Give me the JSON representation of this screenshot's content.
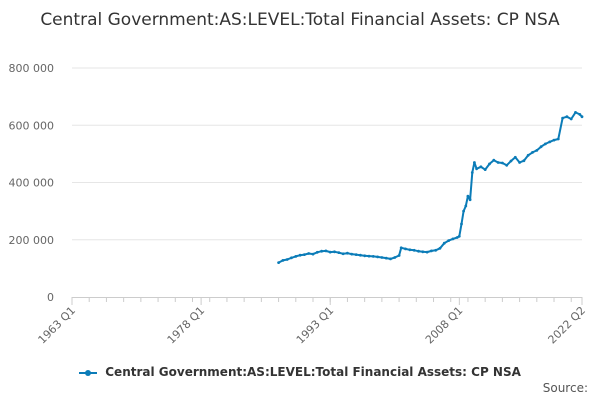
{
  "chart_data": {
    "type": "line",
    "title": "Central Government:AS:LEVEL:Total Financial Assets: CP NSA",
    "x_range": [
      "1963 Q1",
      "2022 Q2"
    ],
    "x_ticks": [
      "1963 Q1",
      "1978 Q1",
      "1993 Q1",
      "2008 Q1",
      "2022 Q2"
    ],
    "y_ticks": [
      "0",
      "200 000",
      "400 000",
      "600 000",
      "800 000"
    ],
    "ylim": [
      0,
      800000
    ],
    "grid": true,
    "legend_position": "bottom",
    "series": [
      {
        "name": "Central Government:AS:LEVEL:Total Financial Assets: CP NSA",
        "color": "#0b7cb8",
        "points": [
          [
            "1987 Q1",
            120000
          ],
          [
            "1987 Q3",
            128000
          ],
          [
            "1988 Q1",
            131000
          ],
          [
            "1988 Q3",
            137000
          ],
          [
            "1989 Q1",
            142000
          ],
          [
            "1989 Q3",
            146000
          ],
          [
            "1990 Q1",
            148000
          ],
          [
            "1990 Q3",
            152000
          ],
          [
            "1991 Q1",
            150000
          ],
          [
            "1991 Q3",
            156000
          ],
          [
            "1992 Q1",
            160000
          ],
          [
            "1992 Q3",
            161000
          ],
          [
            "1993 Q1",
            157000
          ],
          [
            "1993 Q3",
            158000
          ],
          [
            "1994 Q1",
            155000
          ],
          [
            "1994 Q3",
            151000
          ],
          [
            "1995 Q1",
            153000
          ],
          [
            "1995 Q3",
            150000
          ],
          [
            "1996 Q1",
            148000
          ],
          [
            "1996 Q3",
            146000
          ],
          [
            "1997 Q1",
            144000
          ],
          [
            "1997 Q3",
            143000
          ],
          [
            "1998 Q1",
            142000
          ],
          [
            "1998 Q3",
            140000
          ],
          [
            "1999 Q1",
            138000
          ],
          [
            "1999 Q3",
            136000
          ],
          [
            "2000 Q1",
            133000
          ],
          [
            "2000 Q3",
            138000
          ],
          [
            "2001 Q1",
            145000
          ],
          [
            "2001 Q2",
            172000
          ],
          [
            "2001 Q4",
            168000
          ],
          [
            "2002 Q2",
            165000
          ],
          [
            "2002 Q4",
            163000
          ],
          [
            "2003 Q2",
            160000
          ],
          [
            "2003 Q4",
            158000
          ],
          [
            "2004 Q2",
            157000
          ],
          [
            "2004 Q4",
            161000
          ],
          [
            "2005 Q2",
            163000
          ],
          [
            "2005 Q4",
            170000
          ],
          [
            "2006 Q2",
            188000
          ],
          [
            "2006 Q4",
            197000
          ],
          [
            "2007 Q2",
            203000
          ],
          [
            "2007 Q4",
            208000
          ],
          [
            "2008 Q1",
            212000
          ],
          [
            "2008 Q2",
            255000
          ],
          [
            "2008 Q3",
            300000
          ],
          [
            "2008 Q4",
            318000
          ],
          [
            "2009 Q1",
            352000
          ],
          [
            "2009 Q2",
            340000
          ],
          [
            "2009 Q3",
            435000
          ],
          [
            "2009 Q4",
            470000
          ],
          [
            "2010 Q1",
            448000
          ],
          [
            "2010 Q3",
            455000
          ],
          [
            "2011 Q1",
            445000
          ],
          [
            "2011 Q3",
            465000
          ],
          [
            "2012 Q1",
            478000
          ],
          [
            "2012 Q3",
            470000
          ],
          [
            "2013 Q1",
            468000
          ],
          [
            "2013 Q3",
            460000
          ],
          [
            "2014 Q1",
            475000
          ],
          [
            "2014 Q3",
            488000
          ],
          [
            "2015 Q1",
            470000
          ],
          [
            "2015 Q3",
            476000
          ],
          [
            "2016 Q1",
            495000
          ],
          [
            "2016 Q3",
            505000
          ],
          [
            "2017 Q1",
            512000
          ],
          [
            "2017 Q3",
            525000
          ],
          [
            "2018 Q1",
            535000
          ],
          [
            "2018 Q3",
            542000
          ],
          [
            "2019 Q1",
            548000
          ],
          [
            "2019 Q3",
            552000
          ],
          [
            "2020 Q1",
            625000
          ],
          [
            "2020 Q3",
            630000
          ],
          [
            "2021 Q1",
            622000
          ],
          [
            "2021 Q3",
            645000
          ],
          [
            "2022 Q1",
            638000
          ],
          [
            "2022 Q2",
            630000
          ]
        ]
      }
    ]
  },
  "footer": {
    "source_label": "Source:"
  }
}
